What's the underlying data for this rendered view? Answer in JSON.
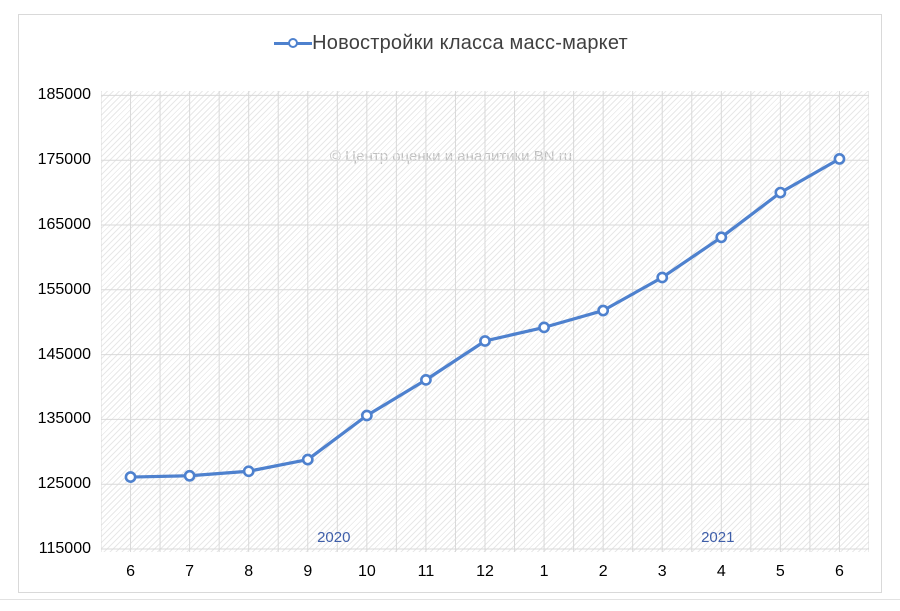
{
  "chart_data": {
    "type": "line",
    "title": "Новостройки класса масс-маркет",
    "legend": {
      "label": "Новостройки класса масс-маркет",
      "position": "top-center",
      "marker": "open-circle-on-line"
    },
    "watermark": "© Центр оценки и аналитики BN.ru",
    "x_categories": [
      "6",
      "7",
      "8",
      "9",
      "10",
      "11",
      "12",
      "1",
      "2",
      "3",
      "4",
      "5",
      "6"
    ],
    "year_groups": [
      {
        "label": "2020",
        "from_index": 0,
        "to_index": 6
      },
      {
        "label": "2021",
        "from_index": 7,
        "to_index": 12
      }
    ],
    "series": [
      {
        "name": "Новостройки класса масс-маркет",
        "values": [
          126100,
          126300,
          127000,
          128800,
          135600,
          141100,
          147100,
          149200,
          151800,
          156900,
          163100,
          170000,
          175200
        ]
      }
    ],
    "ylim": [
      115000,
      185000
    ],
    "ytick_step": 10000,
    "yticks": [
      "115000",
      "125000",
      "135000",
      "145000",
      "155000",
      "165000",
      "175000",
      "185000"
    ],
    "grid": {
      "horizontal": "major",
      "vertical": "half-category",
      "plot_fill": "light-diagonal-hatch"
    },
    "colors": {
      "line": "#4E81CE",
      "marker_fill": "#FFFFFF",
      "grid": "#D9D9D9",
      "hatch": "#E5E5E5",
      "tick_label": "#000000",
      "year_label": "#3E5EA9",
      "title": "#404040",
      "watermark": "#BFBFBF",
      "frame_border": "#D9D9D9"
    }
  }
}
